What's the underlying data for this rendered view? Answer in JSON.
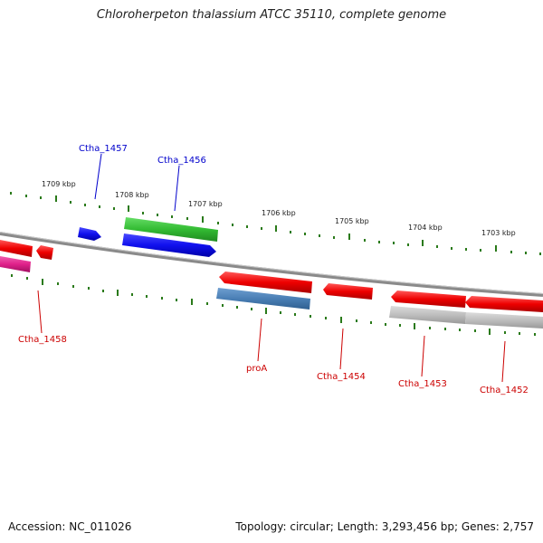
{
  "title": "Chloroherpeton thalassium ATCC 35110, complete genome",
  "footer": {
    "accession": "Accession: NC_011026",
    "topology": "Topology: circular; Length: 3,293,456 bp; Genes: 2,757"
  },
  "colors": {
    "backbone": "#8a8a8a",
    "tick": "#2a7a1a",
    "label_blue": "#0000cc",
    "label_red": "#cc0000",
    "red_gene": "#ee0000",
    "blue_gene": "#1a1aee",
    "green_gene": "#33bb33",
    "steel_gene": "#4a7fb5",
    "gray_gene": "#bdbdbd",
    "pink_gene": "#e0208a"
  },
  "scale_labels": [
    "1709 kbp",
    "1708 kbp",
    "1707 kbp",
    "1706 kbp",
    "1705 kbp",
    "1704 kbp",
    "1703 kbp"
  ],
  "gene_labels": {
    "ctha_1457": "Ctha_1457",
    "ctha_1456": "Ctha_1456",
    "ctha_1458": "Ctha_1458",
    "proa": "proA",
    "ctha_1454": "Ctha_1454",
    "ctha_1453": "Ctha_1453",
    "ctha_1452": "Ctha_1452"
  }
}
